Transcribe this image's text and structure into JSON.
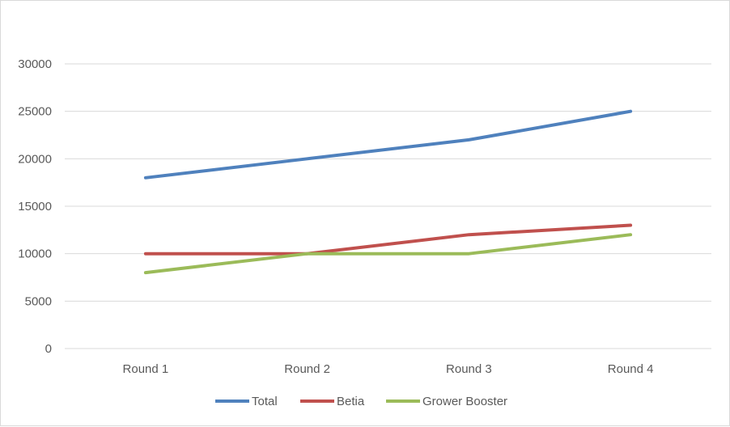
{
  "chart_data": {
    "type": "line",
    "title": "",
    "xlabel": "",
    "ylabel": "",
    "categories": [
      "Round 1",
      "Round 2",
      "Round 3",
      "Round 4"
    ],
    "series": [
      {
        "name": "Total",
        "values": [
          18000,
          20000,
          22000,
          25000
        ],
        "color": "#4f81bd"
      },
      {
        "name": "Betia",
        "values": [
          10000,
          10000,
          12000,
          13000
        ],
        "color": "#c0504d"
      },
      {
        "name": "Grower Booster",
        "values": [
          8000,
          10000,
          10000,
          12000
        ],
        "color": "#9bbb59"
      }
    ],
    "ylim": [
      0,
      30000
    ],
    "yticks": [
      0,
      5000,
      10000,
      15000,
      20000,
      25000,
      30000
    ],
    "grid": true,
    "legend": "bottom",
    "gridline_color": "#d9d9d9",
    "axis_text_color": "#595959"
  }
}
